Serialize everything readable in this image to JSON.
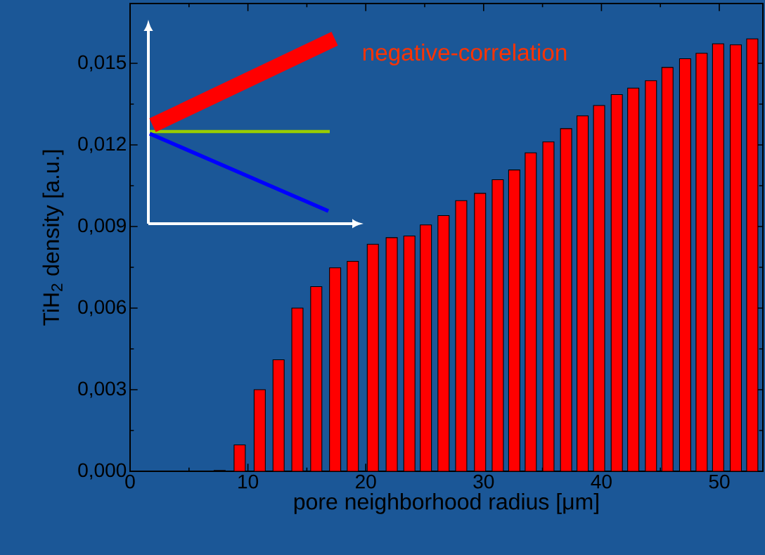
{
  "chart_data": {
    "type": "bar",
    "xlabel": "pore neighborhood radius [μm]",
    "ylabel": "TiH$_{2}$ density [a.u.]",
    "annotations": [
      "negative-correlation"
    ],
    "x": [
      7.6,
      9.3,
      11.0,
      12.6,
      14.2,
      15.8,
      17.4,
      18.9,
      20.6,
      22.2,
      23.7,
      25.1,
      26.6,
      28.1,
      29.7,
      31.2,
      32.6,
      34.0,
      35.5,
      37.0,
      38.4,
      39.8,
      41.3,
      42.7,
      44.2,
      45.6,
      47.1,
      48.5,
      49.9,
      51.4,
      52.8
    ],
    "values": [
      3e-05,
      0.00097,
      0.003,
      0.0041,
      0.006,
      0.00679,
      0.00748,
      0.00772,
      0.00835,
      0.00859,
      0.00865,
      0.00906,
      0.0094,
      0.00995,
      0.01022,
      0.01072,
      0.01108,
      0.01171,
      0.01211,
      0.0126,
      0.01307,
      0.01345,
      0.01385,
      0.01409,
      0.01436,
      0.01485,
      0.01517,
      0.01537,
      0.01572,
      0.01568,
      0.0159
    ],
    "color": "#ff0000",
    "xlim": [
      0,
      53.7
    ],
    "ylim": [
      0,
      0.0172
    ],
    "xticks": [
      0,
      10,
      20,
      30,
      40,
      50
    ],
    "yticks": [
      {
        "value": 0,
        "label": "0,000"
      },
      {
        "value": 0.003,
        "label": "0,003"
      },
      {
        "value": 0.006,
        "label": "0,006"
      },
      {
        "value": 0.009,
        "label": "0,009"
      },
      {
        "value": 0.012,
        "label": "0,012"
      },
      {
        "value": 0.015,
        "label": "0,015"
      }
    ],
    "grid": false
  }
}
